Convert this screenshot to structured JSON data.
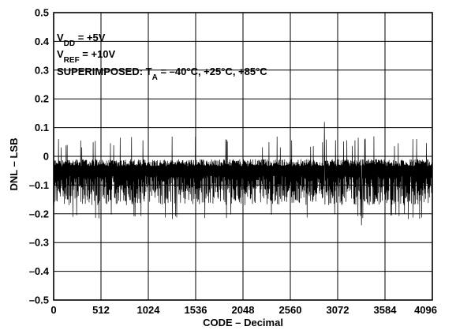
{
  "chart_data": {
    "type": "line",
    "title": "",
    "xlabel": "CODE – Decimal",
    "ylabel": "DNL – LSB",
    "xlim": [
      0,
      4096
    ],
    "ylim": [
      -0.5,
      0.5
    ],
    "x_ticks": [
      "0",
      "512",
      "1024",
      "1536",
      "2048",
      "2560",
      "3072",
      "3584",
      "4096"
    ],
    "y_ticks": [
      "0.5",
      "0.4",
      "0.3",
      "0.2",
      "0.1",
      "0",
      "–0.1",
      "–0.2",
      "–0.3",
      "–0.4",
      "–0.5"
    ],
    "grid": true,
    "annotations": {
      "line1_main": "V",
      "line1_sub": "DD",
      "line1_rest": " = +5V",
      "line2_main": "V",
      "line2_sub": "REF",
      "line2_rest": " = +10V",
      "line3_main": "SUPERIMPOSED: T",
      "line3_sub": "A",
      "line3_rest": " = –40°C, +25°C, +85°C"
    },
    "series": [
      {
        "values_summary": "dense DNL noise vs code, roughly within -0.2 to +0.05 LSB, peaks near +0.12 around code 2900, minimum near -0.24 around code 3330",
        "envelope": {
          "upper_typ": 0.03,
          "lower_typ": -0.17,
          "max": 0.12,
          "min": -0.24
        },
        "x_points": [
          0,
          256,
          512,
          768,
          1024,
          1280,
          1536,
          1792,
          2048,
          2304,
          2560,
          2816,
          2928,
          3072,
          3328,
          3584,
          3840,
          4096
        ],
        "y_points": [
          -0.02,
          -0.05,
          -0.04,
          -0.06,
          -0.03,
          -0.05,
          -0.04,
          -0.07,
          -0.03,
          -0.05,
          -0.04,
          -0.06,
          0.12,
          -0.05,
          -0.24,
          -0.04,
          -0.06,
          -0.03
        ]
      }
    ]
  }
}
